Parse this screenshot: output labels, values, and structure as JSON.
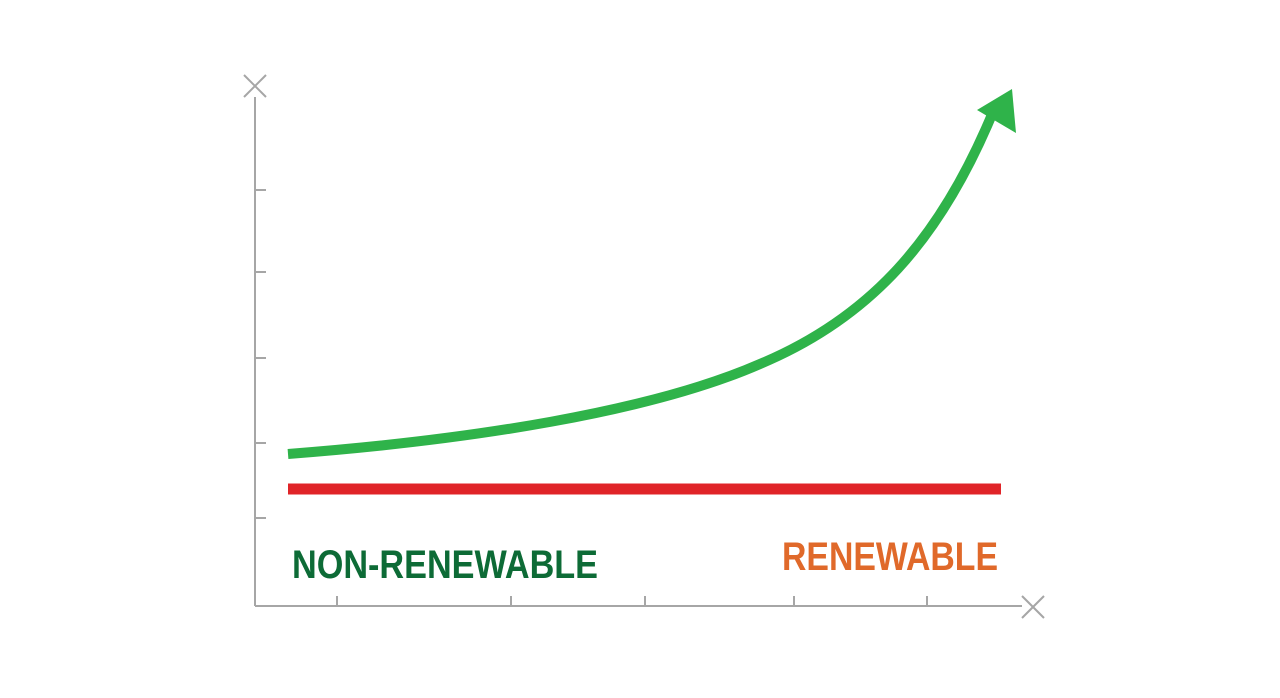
{
  "chart_data": {
    "type": "line",
    "title": "",
    "xlabel": "",
    "ylabel": "",
    "grid": false,
    "axis_end_marks": "x",
    "series": [
      {
        "name": "NON-RENEWABLE",
        "color": "#2fb34a",
        "label_color": "#0d6b36",
        "shape": "exponential-rise",
        "end_marker": "arrow-up-right"
      },
      {
        "name": "RENEWABLE",
        "color": "#e02428",
        "label_color": "#e0692a",
        "shape": "flat"
      }
    ]
  },
  "colors": {
    "axis": "#a6a6a6",
    "background": "#ffffff"
  }
}
